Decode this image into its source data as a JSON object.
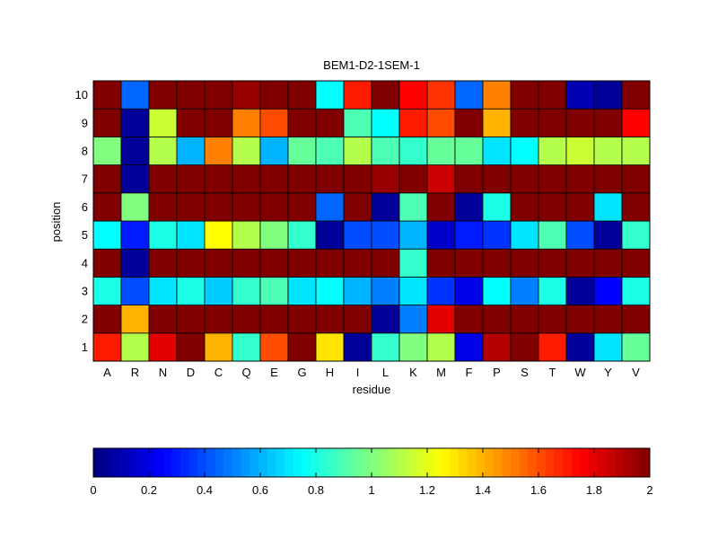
{
  "chart_data": {
    "type": "heatmap",
    "title": "BEM1-D2-1SEM-1",
    "xlabel": "residue",
    "ylabel": "position",
    "x_categories": [
      "A",
      "R",
      "N",
      "D",
      "C",
      "Q",
      "E",
      "G",
      "H",
      "I",
      "L",
      "K",
      "M",
      "F",
      "P",
      "S",
      "T",
      "W",
      "Y",
      "V"
    ],
    "y_categories": [
      "1",
      "2",
      "3",
      "4",
      "5",
      "6",
      "7",
      "8",
      "9",
      "10"
    ],
    "colormap": "jet",
    "clim": [
      0,
      2
    ],
    "grid": false,
    "values": [
      [
        1.7,
        1.1,
        1.8,
        2.0,
        1.4,
        0.85,
        1.6,
        2.0,
        1.3,
        0.05,
        0.85,
        1.0,
        1.1,
        0.2,
        1.9,
        2.0,
        1.7,
        0.05,
        0.7,
        0.95
      ],
      [
        2.0,
        1.4,
        2.0,
        2.0,
        2.0,
        2.0,
        2.0,
        2.0,
        2.0,
        2.0,
        0.05,
        0.5,
        1.8,
        2.0,
        2.0,
        2.0,
        2.0,
        2.0,
        2.0,
        2.0
      ],
      [
        0.8,
        0.4,
        0.7,
        0.8,
        0.65,
        0.85,
        0.9,
        0.7,
        0.75,
        0.6,
        0.5,
        0.7,
        0.35,
        0.2,
        0.75,
        0.5,
        0.8,
        0.05,
        0.25,
        0.8
      ],
      [
        2.0,
        0.05,
        2.0,
        2.0,
        2.0,
        2.0,
        2.0,
        2.0,
        2.0,
        2.0,
        2.0,
        0.85,
        2.0,
        2.0,
        2.0,
        2.0,
        2.0,
        2.0,
        2.0,
        2.0
      ],
      [
        0.75,
        0.3,
        0.8,
        0.7,
        1.25,
        1.1,
        1.0,
        0.85,
        0.05,
        0.4,
        0.4,
        0.6,
        0.15,
        0.3,
        0.35,
        0.7,
        0.9,
        0.4,
        0.05,
        0.85
      ],
      [
        2.0,
        1.0,
        2.0,
        2.0,
        2.0,
        2.0,
        2.0,
        2.0,
        0.45,
        2.0,
        0.05,
        0.9,
        2.0,
        0.05,
        0.8,
        2.0,
        2.0,
        2.0,
        0.7,
        2.0
      ],
      [
        2.0,
        0.05,
        2.0,
        2.0,
        2.0,
        2.0,
        2.0,
        2.0,
        2.0,
        2.0,
        1.95,
        2.0,
        1.85,
        2.0,
        2.0,
        2.0,
        2.0,
        2.0,
        2.0,
        2.0
      ],
      [
        1.0,
        0.05,
        1.1,
        0.6,
        1.5,
        1.1,
        0.6,
        0.95,
        0.9,
        1.1,
        0.9,
        0.85,
        0.95,
        0.95,
        0.7,
        0.75,
        1.1,
        1.15,
        1.1,
        1.1
      ],
      [
        2.0,
        0.05,
        1.15,
        2.0,
        2.0,
        1.5,
        1.6,
        2.0,
        2.0,
        0.9,
        0.75,
        1.7,
        1.6,
        2.0,
        1.4,
        2.0,
        2.0,
        2.0,
        2.0,
        1.75
      ],
      [
        2.0,
        0.45,
        2.0,
        2.0,
        2.0,
        1.95,
        2.0,
        2.0,
        0.75,
        1.7,
        2.0,
        1.75,
        1.65,
        0.45,
        1.5,
        2.0,
        2.0,
        0.1,
        0.05,
        2.0
      ]
    ],
    "colorbar": {
      "ticks": [
        0,
        0.2,
        0.4,
        0.6,
        0.8,
        1,
        1.2,
        1.4,
        1.6,
        1.8,
        2
      ],
      "tick_labels": [
        "0",
        "0.2",
        "0.4",
        "0.6",
        "0.8",
        "1",
        "1.2",
        "1.4",
        "1.6",
        "1.8",
        "2"
      ]
    }
  }
}
